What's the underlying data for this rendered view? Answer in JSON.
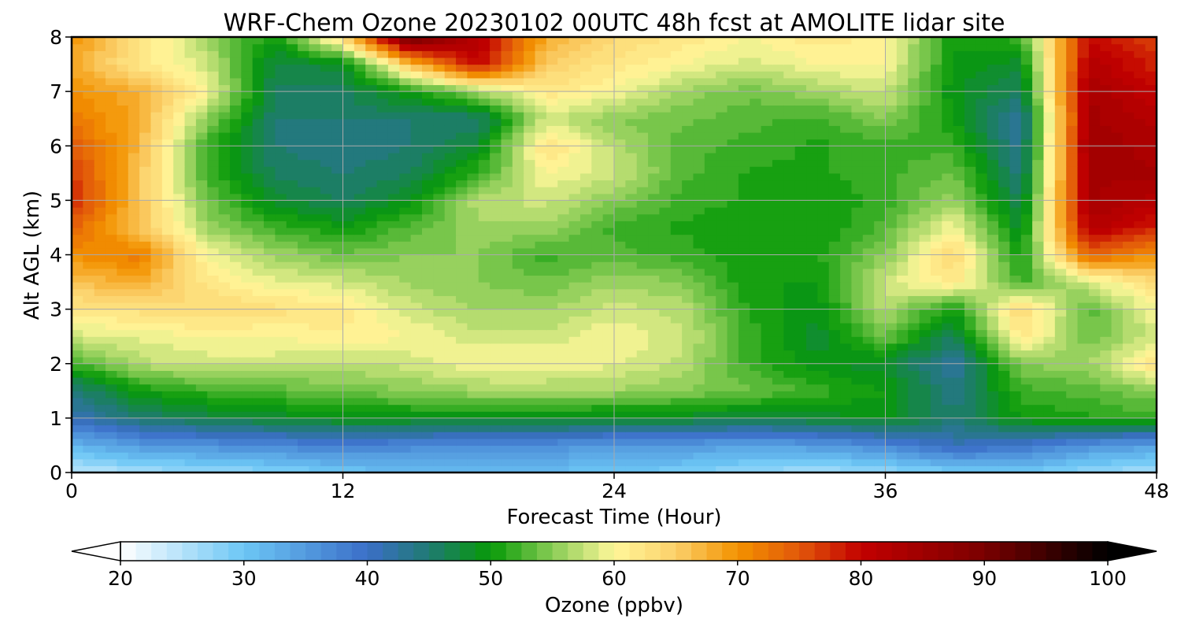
{
  "chart_data": {
    "type": "heatmap",
    "title": "WRF-Chem Ozone  20230102 00UTC 48h fcst at AMOLITE lidar site",
    "xlabel": "Forecast Time (Hour)",
    "ylabel": "Alt AGL (km)",
    "xlim": [
      0,
      48
    ],
    "ylim": [
      0,
      8
    ],
    "xticks": [
      0,
      12,
      24,
      36,
      48
    ],
    "yticks": [
      0,
      1,
      2,
      3,
      4,
      5,
      6,
      7,
      8
    ],
    "grid": true,
    "colorbar": {
      "label": "Ozone  (ppbv)",
      "range": [
        20,
        100
      ],
      "ticks": [
        20,
        30,
        40,
        50,
        60,
        70,
        80,
        90,
        100
      ],
      "extend": "both",
      "levels": 64,
      "colors": [
        {
          "v": 20,
          "c": "#ffffff"
        },
        {
          "v": 30,
          "c": "#6cc6f5"
        },
        {
          "v": 40,
          "c": "#3b6fc8"
        },
        {
          "v": 45,
          "c": "#1f7a72"
        },
        {
          "v": 50,
          "c": "#079a07"
        },
        {
          "v": 55,
          "c": "#88cc55"
        },
        {
          "v": 60,
          "c": "#fff79a"
        },
        {
          "v": 65,
          "c": "#fbd06a"
        },
        {
          "v": 70,
          "c": "#f39200"
        },
        {
          "v": 75,
          "c": "#e2580a"
        },
        {
          "v": 80,
          "c": "#c20000"
        },
        {
          "v": 90,
          "c": "#7a0000"
        },
        {
          "v": 100,
          "c": "#000000"
        }
      ]
    },
    "x": [
      0,
      3,
      6,
      9,
      12,
      15,
      18,
      21,
      24,
      27,
      30,
      33,
      36,
      39,
      42,
      45,
      48
    ],
    "y": [
      0,
      0.5,
      1,
      1.5,
      2,
      2.5,
      3,
      3.5,
      4,
      4.5,
      5,
      5.5,
      6,
      6.5,
      7,
      7.5,
      8
    ],
    "z": [
      [
        24,
        26,
        27,
        28,
        30,
        31,
        31,
        31,
        30,
        29,
        27,
        26,
        27,
        29,
        30,
        27,
        26
      ],
      [
        32,
        35,
        36,
        37,
        38,
        37,
        36,
        36,
        35,
        35,
        34,
        35,
        37,
        41,
        39,
        36,
        34
      ],
      [
        41,
        45,
        47,
        48,
        49,
        49,
        49,
        49,
        48,
        48,
        47,
        48,
        49,
        45,
        50,
        51,
        52
      ],
      [
        44,
        50,
        52,
        53,
        54,
        55,
        56,
        56,
        56,
        55,
        54,
        52,
        50,
        44,
        52,
        53,
        55
      ],
      [
        52,
        57,
        58,
        58,
        57,
        58,
        60,
        60,
        59,
        57,
        52,
        49,
        48,
        42,
        55,
        56,
        63
      ],
      [
        58,
        59,
        60,
        60,
        61,
        60,
        58,
        58,
        60,
        58,
        52,
        48,
        54,
        46,
        62,
        54,
        58
      ],
      [
        62,
        63,
        64,
        63,
        62,
        58,
        56,
        56,
        58,
        57,
        51,
        49,
        57,
        50,
        64,
        53,
        60
      ],
      [
        66,
        68,
        62,
        59,
        58,
        56,
        55,
        54,
        56,
        55,
        50,
        50,
        58,
        62,
        52,
        58,
        64
      ],
      [
        70,
        72,
        60,
        56,
        54,
        55,
        55,
        52,
        53,
        52,
        50,
        51,
        55,
        64,
        50,
        74,
        70
      ],
      [
        74,
        66,
        56,
        52,
        50,
        53,
        56,
        56,
        52,
        51,
        50,
        50,
        53,
        60,
        48,
        82,
        78
      ],
      [
        78,
        66,
        54,
        48,
        46,
        49,
        57,
        58,
        55,
        52,
        51,
        50,
        52,
        56,
        46,
        84,
        82
      ],
      [
        77,
        66,
        52,
        46,
        45,
        46,
        52,
        60,
        58,
        53,
        51,
        51,
        52,
        54,
        44,
        84,
        84
      ],
      [
        75,
        67,
        52,
        45,
        44,
        45,
        48,
        63,
        57,
        53,
        52,
        51,
        52,
        52,
        43,
        85,
        83
      ],
      [
        72,
        68,
        55,
        45,
        45,
        45,
        45,
        58,
        55,
        54,
        53,
        52,
        55,
        50,
        42,
        84,
        82
      ],
      [
        70,
        68,
        60,
        46,
        46,
        50,
        56,
        62,
        60,
        56,
        54,
        56,
        58,
        49,
        46,
        84,
        80
      ],
      [
        68,
        62,
        58,
        47,
        48,
        66,
        80,
        65,
        62,
        60,
        58,
        60,
        60,
        50,
        48,
        82,
        78
      ],
      [
        70,
        63,
        56,
        50,
        64,
        92,
        82,
        68,
        64,
        62,
        60,
        62,
        61,
        50,
        52,
        80,
        76
      ]
    ]
  }
}
